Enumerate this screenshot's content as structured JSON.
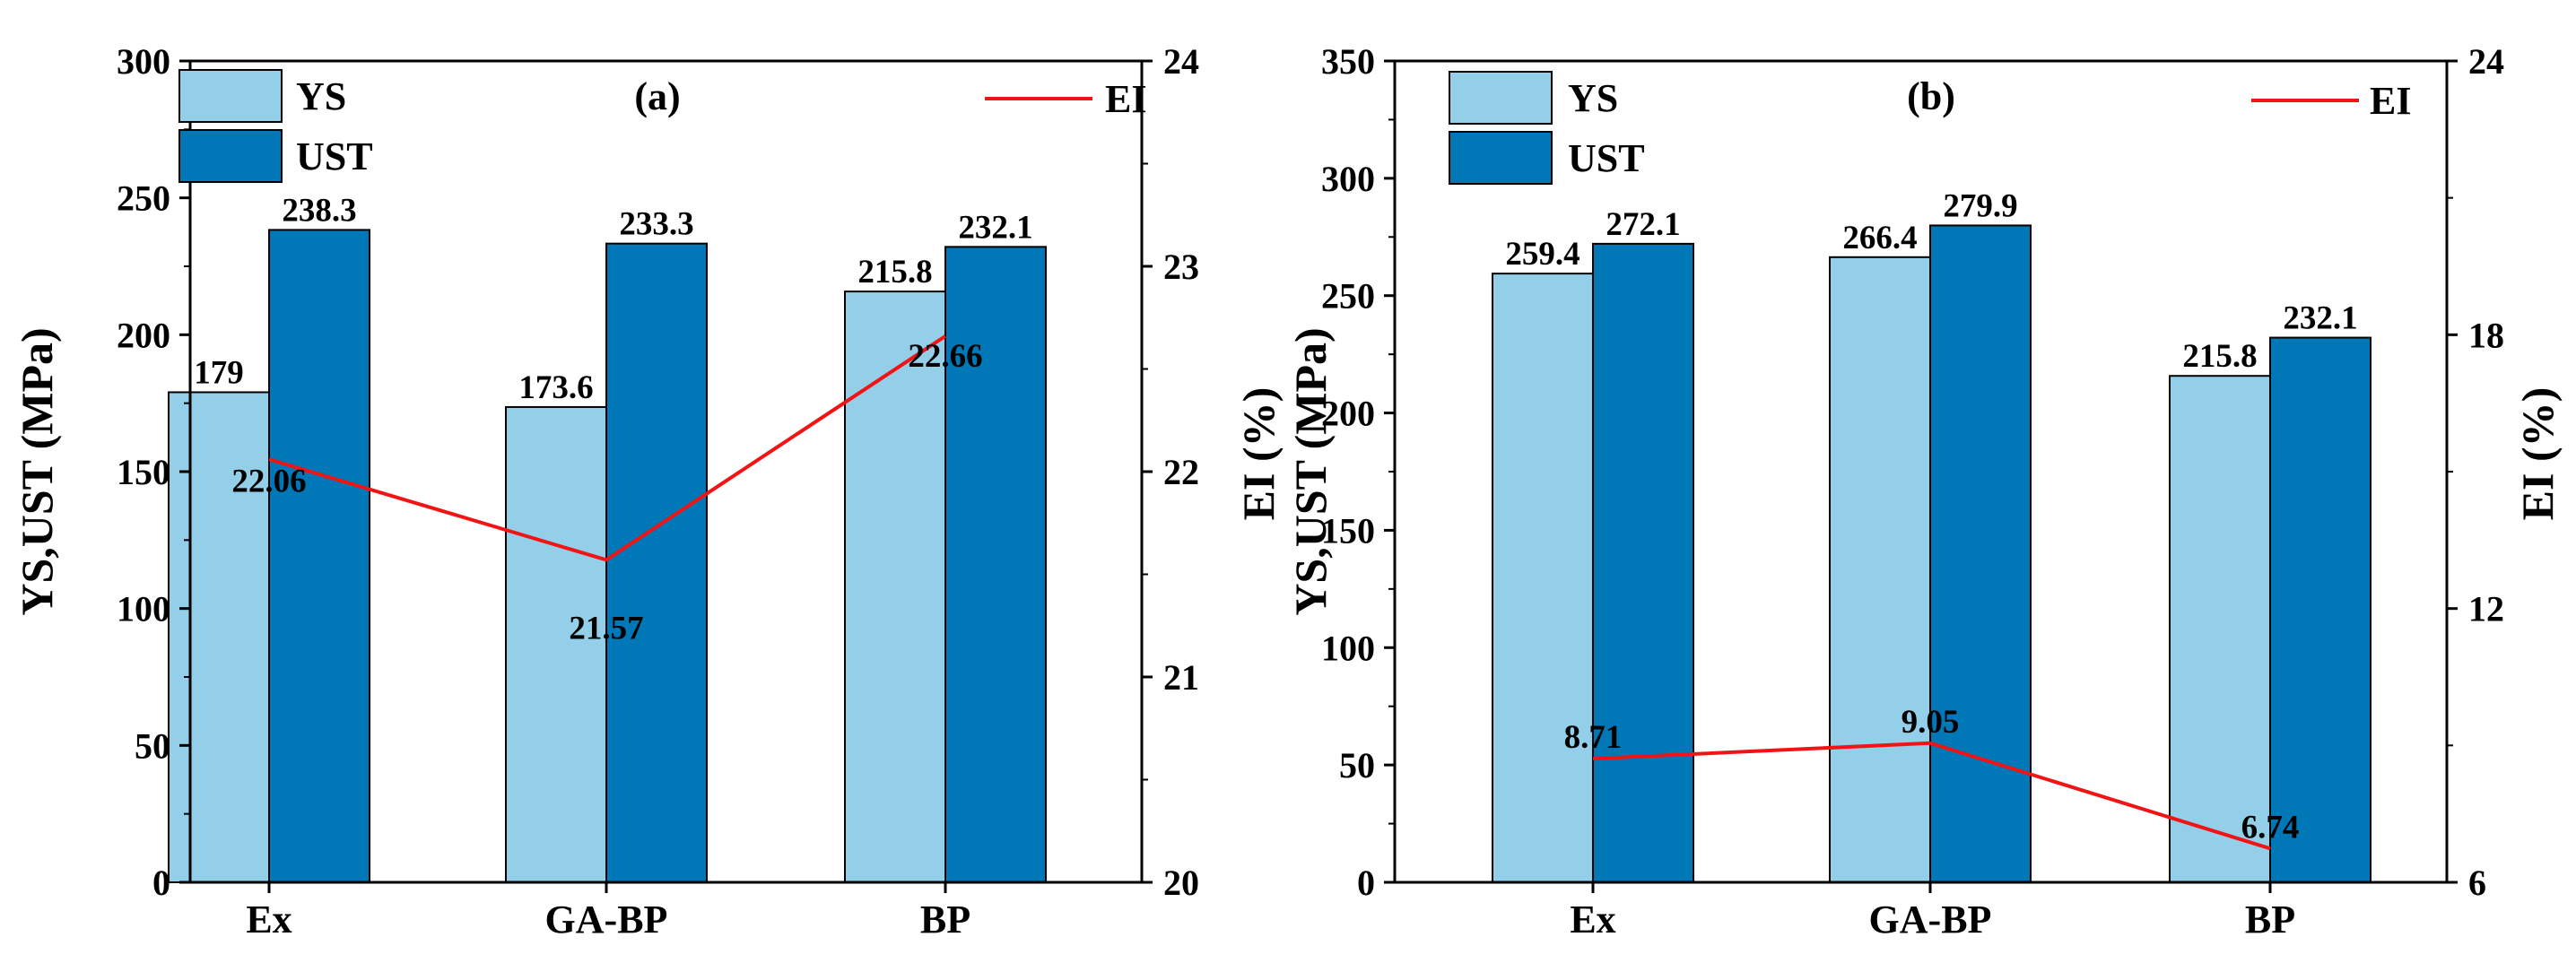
{
  "chart_data": [
    {
      "type": "bar+line",
      "panel_label": "(a)",
      "categories": [
        "Ex",
        "GA-BP",
        "BP"
      ],
      "series": [
        {
          "name": "YS",
          "kind": "bar",
          "axis": "left",
          "values": [
            179,
            173.6,
            215.8
          ],
          "labels": [
            "179",
            "173.6",
            "215.8"
          ],
          "color": "#94cfe9"
        },
        {
          "name": "UST",
          "kind": "bar",
          "axis": "left",
          "values": [
            238.3,
            233.3,
            232.1
          ],
          "labels": [
            "238.3",
            "233.3",
            "232.1"
          ],
          "color": "#0078b7"
        },
        {
          "name": "EI",
          "kind": "line",
          "axis": "right",
          "values": [
            22.06,
            21.57,
            22.66
          ],
          "labels": [
            "22.06",
            "21.57",
            "22.66"
          ],
          "color": "#f21414"
        }
      ],
      "ylabel_left": "YS,UST (MPa)",
      "ylabel_right": "EI (%)",
      "ylim_left": [
        0,
        300
      ],
      "yticks_left": [
        "0",
        "50",
        "100",
        "150",
        "200",
        "250",
        "300"
      ],
      "ylim_right": [
        20,
        24
      ],
      "yticks_right": [
        "20",
        "21",
        "22",
        "23",
        "24"
      ],
      "legend": {
        "bars": [
          "YS",
          "UST"
        ],
        "line": "EI"
      }
    },
    {
      "type": "bar+line",
      "panel_label": "(b)",
      "categories": [
        "Ex",
        "GA-BP",
        "BP"
      ],
      "series": [
        {
          "name": "YS",
          "kind": "bar",
          "axis": "left",
          "values": [
            259.4,
            266.4,
            215.8
          ],
          "labels": [
            "259.4",
            "266.4",
            "215.8"
          ],
          "color": "#94cfe9"
        },
        {
          "name": "UST",
          "kind": "bar",
          "axis": "left",
          "values": [
            272.1,
            279.9,
            232.1
          ],
          "labels": [
            "272.1",
            "279.9",
            "232.1"
          ],
          "color": "#0078b7"
        },
        {
          "name": "EI",
          "kind": "line",
          "axis": "right",
          "values": [
            8.71,
            9.05,
            6.74
          ],
          "labels": [
            "8.71",
            "9.05",
            "6.74"
          ],
          "color": "#f21414"
        }
      ],
      "ylabel_left": "YS,UST (MPa)",
      "ylabel_right": "EI (%)",
      "ylim_left": [
        0,
        350
      ],
      "yticks_left": [
        "0",
        "50",
        "100",
        "150",
        "200",
        "250",
        "300",
        "350"
      ],
      "ylim_right": [
        6,
        24
      ],
      "yticks_right": [
        "6",
        "12",
        "18",
        "24"
      ],
      "legend": {
        "bars": [
          "YS",
          "UST"
        ],
        "line": "EI"
      }
    }
  ]
}
